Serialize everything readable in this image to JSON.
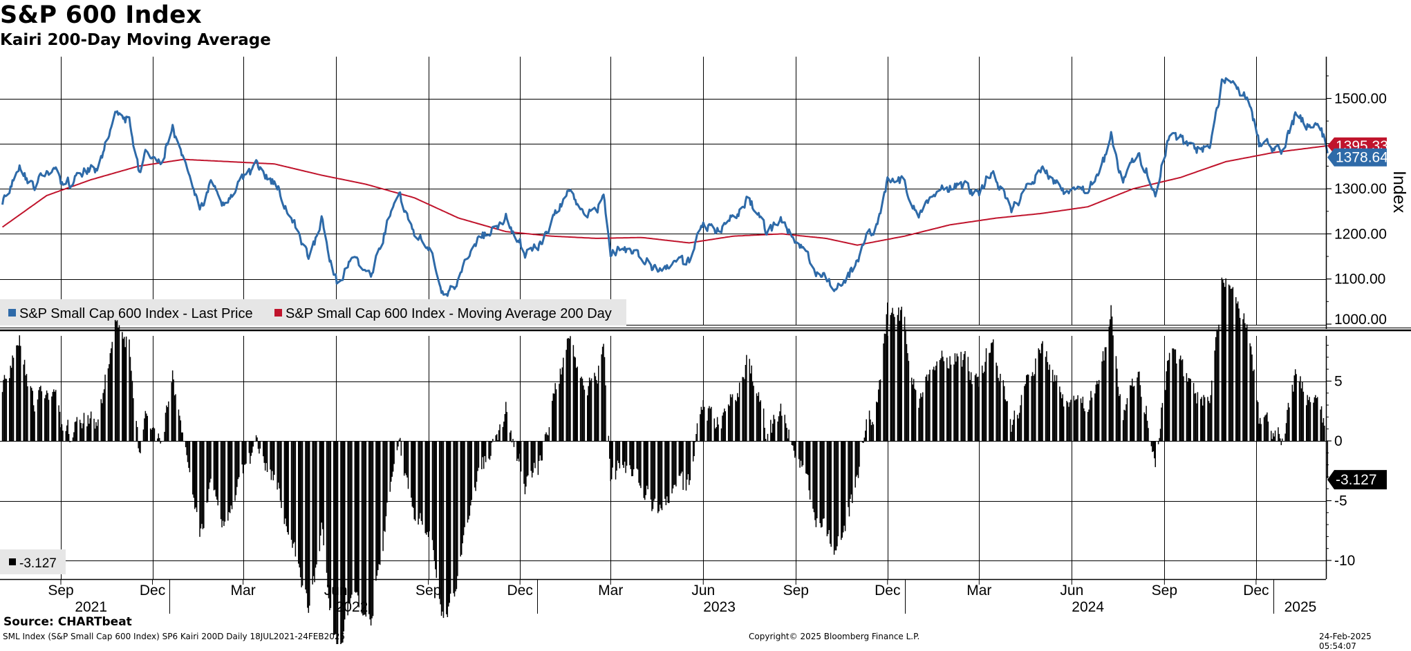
{
  "header": {
    "title": "S&P 600 Index",
    "subtitle": "Kairi 200-Day Moving Average"
  },
  "footer": {
    "source": "Source: CHARTbeat",
    "left_note": "SML Index (S&P Small Cap 600 Index) SP6 Kairi 200D  Daily 18JUL2021-24FEB2025",
    "copyright": "Copyright© 2025 Bloomberg Finance L.P.",
    "timestamp": "24-Feb-2025 05:54:07"
  },
  "colors": {
    "price": "#2e6aa8",
    "ma": "#c0142c",
    "kairi": "#000000",
    "grid": "#000000",
    "legend_bg": "#e6e6e6"
  },
  "chart_data": [
    {
      "type": "line",
      "title": "S&P 600 Index",
      "subtitle": "Kairi 200-Day Moving Average",
      "ylabel": "Index",
      "ylim": [
        1000,
        1600
      ],
      "yticks": [
        "1500.00",
        "1400.00",
        "1300.00",
        "1200.00",
        "1100.00",
        "1000.00"
      ],
      "x_range": [
        "2021-07-18",
        "2025-02-24"
      ],
      "legend_position": "bottom-left",
      "series": [
        {
          "name": "S&P Small Cap 600 Index - Last Price",
          "color": "#2e6aa8",
          "last_value_label": "1378.64",
          "points": [
            [
              "2021-07-19",
              1270
            ],
            [
              "2021-08-05",
              1340
            ],
            [
              "2021-08-20",
              1310
            ],
            [
              "2021-09-05",
              1345
            ],
            [
              "2021-09-20",
              1300
            ],
            [
              "2021-10-05",
              1345
            ],
            [
              "2021-10-20",
              1340
            ],
            [
              "2021-11-08",
              1465
            ],
            [
              "2021-11-22",
              1450
            ],
            [
              "2021-12-01",
              1340
            ],
            [
              "2021-12-10",
              1385
            ],
            [
              "2021-12-20",
              1340
            ],
            [
              "2022-01-04",
              1430
            ],
            [
              "2022-01-20",
              1340
            ],
            [
              "2022-01-31",
              1250
            ],
            [
              "2022-02-10",
              1310
            ],
            [
              "2022-02-24",
              1260
            ],
            [
              "2022-03-10",
              1310
            ],
            [
              "2022-03-29",
              1350
            ],
            [
              "2022-04-20",
              1300
            ],
            [
              "2022-05-05",
              1220
            ],
            [
              "2022-05-20",
              1150
            ],
            [
              "2022-06-01",
              1230
            ],
            [
              "2022-06-16",
              1090
            ],
            [
              "2022-07-01",
              1150
            ],
            [
              "2022-07-20",
              1120
            ],
            [
              "2022-08-16",
              1290
            ],
            [
              "2022-08-30",
              1200
            ],
            [
              "2022-09-15",
              1170
            ],
            [
              "2022-09-29",
              1075
            ],
            [
              "2022-10-12",
              1080
            ],
            [
              "2022-10-31",
              1170
            ],
            [
              "2022-11-15",
              1210
            ],
            [
              "2022-12-01",
              1235
            ],
            [
              "2022-12-20",
              1160
            ],
            [
              "2023-01-05",
              1175
            ],
            [
              "2023-01-20",
              1250
            ],
            [
              "2023-02-02",
              1305
            ],
            [
              "2023-02-20",
              1240
            ],
            [
              "2023-03-08",
              1270
            ],
            [
              "2023-03-15",
              1160
            ],
            [
              "2023-03-31",
              1160
            ],
            [
              "2023-04-15",
              1140
            ],
            [
              "2023-05-04",
              1120
            ],
            [
              "2023-05-20",
              1140
            ],
            [
              "2023-06-01",
              1130
            ],
            [
              "2023-06-13",
              1220
            ],
            [
              "2023-06-30",
              1210
            ],
            [
              "2023-07-31",
              1275
            ],
            [
              "2023-08-18",
              1200
            ],
            [
              "2023-08-31",
              1230
            ],
            [
              "2023-09-20",
              1170
            ],
            [
              "2023-10-05",
              1120
            ],
            [
              "2023-10-27",
              1080
            ],
            [
              "2023-11-10",
              1120
            ],
            [
              "2023-11-20",
              1170
            ],
            [
              "2023-12-05",
              1230
            ],
            [
              "2023-12-15",
              1320
            ],
            [
              "2023-12-29",
              1320
            ],
            [
              "2024-01-17",
              1240
            ],
            [
              "2024-02-01",
              1290
            ],
            [
              "2024-02-20",
              1310
            ],
            [
              "2024-03-15",
              1290
            ],
            [
              "2024-03-28",
              1340
            ],
            [
              "2024-04-16",
              1260
            ],
            [
              "2024-05-15",
              1340
            ],
            [
              "2024-06-10",
              1290
            ],
            [
              "2024-06-28",
              1290
            ],
            [
              "2024-07-12",
              1320
            ],
            [
              "2024-07-24",
              1420
            ],
            [
              "2024-08-05",
              1310
            ],
            [
              "2024-08-20",
              1380
            ],
            [
              "2024-09-06",
              1300
            ],
            [
              "2024-09-20",
              1420
            ],
            [
              "2024-10-10",
              1390
            ],
            [
              "2024-10-31",
              1390
            ],
            [
              "2024-11-11",
              1540
            ],
            [
              "2024-11-25",
              1530
            ],
            [
              "2024-12-10",
              1480
            ],
            [
              "2024-12-18",
              1400
            ],
            [
              "2025-01-10",
              1380
            ],
            [
              "2025-01-23",
              1460
            ],
            [
              "2025-02-10",
              1430
            ],
            [
              "2025-02-18",
              1435
            ],
            [
              "2025-02-24",
              1378.64
            ]
          ]
        },
        {
          "name": "S&P Small Cap 600 Index - Moving Average 200 Day",
          "color": "#c0142c",
          "last_value_label": "1395.33",
          "points": [
            [
              "2021-07-19",
              1215
            ],
            [
              "2021-09-01",
              1285
            ],
            [
              "2021-10-15",
              1320
            ],
            [
              "2021-12-01",
              1350
            ],
            [
              "2022-01-15",
              1365
            ],
            [
              "2022-03-01",
              1360
            ],
            [
              "2022-04-15",
              1355
            ],
            [
              "2022-06-01",
              1330
            ],
            [
              "2022-07-15",
              1310
            ],
            [
              "2022-09-01",
              1280
            ],
            [
              "2022-10-15",
              1235
            ],
            [
              "2022-12-01",
              1205
            ],
            [
              "2023-01-15",
              1195
            ],
            [
              "2023-03-01",
              1190
            ],
            [
              "2023-04-15",
              1192
            ],
            [
              "2023-06-01",
              1180
            ],
            [
              "2023-07-15",
              1195
            ],
            [
              "2023-09-01",
              1200
            ],
            [
              "2023-10-15",
              1190
            ],
            [
              "2023-11-15",
              1175
            ],
            [
              "2024-01-01",
              1195
            ],
            [
              "2024-02-15",
              1220
            ],
            [
              "2024-04-01",
              1235
            ],
            [
              "2024-05-15",
              1245
            ],
            [
              "2024-07-01",
              1260
            ],
            [
              "2024-08-15",
              1300
            ],
            [
              "2024-10-01",
              1325
            ],
            [
              "2024-11-15",
              1360
            ],
            [
              "2025-01-01",
              1380
            ],
            [
              "2025-02-24",
              1395.33
            ]
          ]
        }
      ]
    },
    {
      "type": "bar",
      "ylim": [
        -11,
        9
      ],
      "yticks": [
        "5",
        "0",
        "-5",
        "-10"
      ],
      "legend_position": "bottom-left",
      "series": [
        {
          "name": "-3.127",
          "color": "#000000",
          "last_value_label": "-3.127"
        }
      ]
    }
  ],
  "x_axis": {
    "months": [
      "Sep",
      "Dec",
      "Mar",
      "Jun",
      "Sep",
      "Dec",
      "Mar",
      "Jun",
      "Sep",
      "Dec",
      "Mar",
      "Jun",
      "Sep",
      "Dec"
    ],
    "month_dates": [
      "2021-09-15",
      "2021-12-15",
      "2022-03-15",
      "2022-06-15",
      "2022-09-15",
      "2022-12-15",
      "2023-03-15",
      "2023-06-15",
      "2023-09-15",
      "2023-12-15",
      "2024-03-15",
      "2024-06-15",
      "2024-09-15",
      "2024-12-15"
    ],
    "years": [
      "2021",
      "2022",
      "2023",
      "2024",
      "2025"
    ],
    "year_dates": [
      "2021-10-15",
      "2022-07-01",
      "2023-07-01",
      "2024-07-01",
      "2025-01-28"
    ]
  }
}
